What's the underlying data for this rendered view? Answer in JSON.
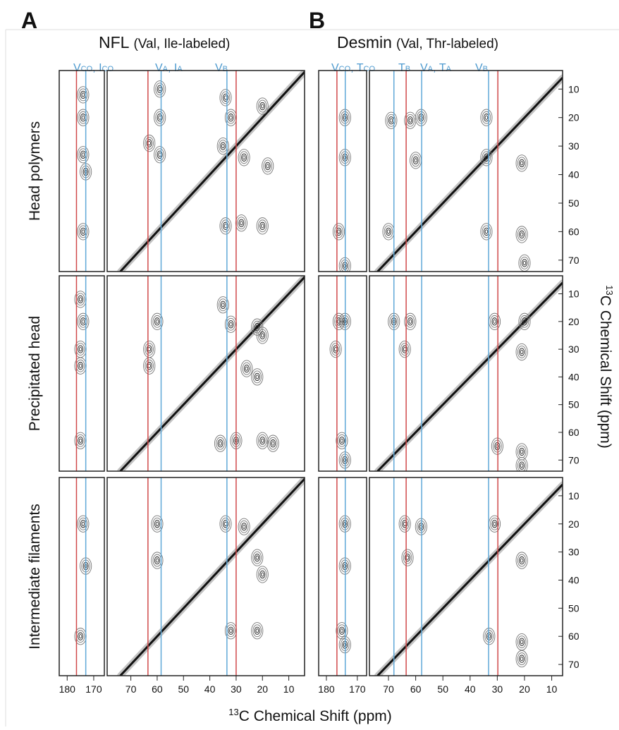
{
  "figure": {
    "type": "contour",
    "columns": [
      {
        "panel_label": "A",
        "title": "NFL",
        "subtitle": "(Val, Ile-labeled)",
        "strip": {
          "xlim": [
            183,
            166
          ],
          "xticks": [
            180,
            170
          ]
        },
        "main": {
          "xlim": [
            79,
            4
          ],
          "xticks": [
            70,
            60,
            50,
            40,
            30,
            20,
            10
          ]
        },
        "lines": [
          {
            "section": "strip",
            "ppm": 176.5,
            "color": "#d0494a"
          },
          {
            "section": "strip",
            "ppm": 173,
            "color": "#5fa8d8"
          },
          {
            "section": "main",
            "ppm": 63.5,
            "color": "#d0494a"
          },
          {
            "section": "main",
            "ppm": 58.5,
            "color": "#5fa8d8"
          },
          {
            "section": "main",
            "ppm": 33.5,
            "color": "#5fa8d8"
          },
          {
            "section": "main",
            "ppm": 30,
            "color": "#d0494a"
          }
        ],
        "line_labels": [
          "Vco, Ico",
          "Vα, Iα",
          "Vβ"
        ],
        "rows": [
          {
            "strip_peaks": [
              [
                174,
                12
              ],
              [
                174,
                20
              ],
              [
                174,
                33
              ],
              [
                173,
                39
              ],
              [
                174,
                60
              ]
            ],
            "main_peaks": [
              [
                59,
                10
              ],
              [
                59,
                20
              ],
              [
                59,
                33
              ],
              [
                63,
                29
              ],
              [
                34,
                13
              ],
              [
                32,
                20
              ],
              [
                35,
                30
              ],
              [
                27,
                34
              ],
              [
                20,
                16
              ],
              [
                18,
                37
              ],
              [
                34,
                58
              ],
              [
                28,
                57
              ],
              [
                20,
                58
              ]
            ]
          },
          {
            "strip_peaks": [
              [
                175,
                12
              ],
              [
                174,
                20
              ],
              [
                175,
                30
              ],
              [
                175,
                36
              ],
              [
                175,
                63
              ]
            ],
            "main_peaks": [
              [
                60,
                20
              ],
              [
                63,
                30
              ],
              [
                63,
                36
              ],
              [
                35,
                14
              ],
              [
                32,
                21
              ],
              [
                22,
                22
              ],
              [
                20,
                25
              ],
              [
                26,
                37
              ],
              [
                22,
                40
              ],
              [
                36,
                64
              ],
              [
                30,
                63
              ],
              [
                20,
                63
              ],
              [
                16,
                64
              ]
            ]
          },
          {
            "strip_peaks": [
              [
                174,
                20
              ],
              [
                173,
                35
              ],
              [
                175,
                60
              ]
            ],
            "main_peaks": [
              [
                60,
                20
              ],
              [
                60,
                33
              ],
              [
                34,
                20
              ],
              [
                27,
                21
              ],
              [
                22,
                32
              ],
              [
                20,
                38
              ],
              [
                32,
                58
              ],
              [
                22,
                58
              ]
            ]
          }
        ]
      },
      {
        "panel_label": "B",
        "title": "Desmin",
        "subtitle": "(Val, Thr-labeled)",
        "strip": {
          "xlim": [
            182.5,
            167
          ],
          "xticks": [
            180,
            170
          ]
        },
        "main": {
          "xlim": [
            77,
            6
          ],
          "xticks": [
            70,
            60,
            50,
            40,
            30,
            20,
            10
          ]
        },
        "lines": [
          {
            "section": "strip",
            "ppm": 176.6,
            "color": "#d0494a"
          },
          {
            "section": "strip",
            "ppm": 173.9,
            "color": "#5fa8d8"
          },
          {
            "section": "main",
            "ppm": 68,
            "color": "#5fa8d8"
          },
          {
            "section": "main",
            "ppm": 63.5,
            "color": "#d0494a"
          },
          {
            "section": "main",
            "ppm": 57.8,
            "color": "#5fa8d8"
          },
          {
            "section": "main",
            "ppm": 33.2,
            "color": "#5fa8d8"
          },
          {
            "section": "main",
            "ppm": 29.8,
            "color": "#d0494a"
          }
        ],
        "line_labels": [
          "Vco, Tco",
          "Tβ",
          "Vα, Tα",
          "Vβ"
        ],
        "rows": [
          {
            "strip_peaks": [
              [
                174,
                20
              ],
              [
                174,
                34
              ],
              [
                176,
                60
              ],
              [
                174,
                72
              ]
            ],
            "main_peaks": [
              [
                69,
                21
              ],
              [
                62,
                21
              ],
              [
                58,
                20
              ],
              [
                34,
                20
              ],
              [
                60,
                35
              ],
              [
                34,
                34
              ],
              [
                70,
                60
              ],
              [
                34,
                60
              ],
              [
                21,
                36
              ],
              [
                21,
                61
              ],
              [
                20,
                71
              ]
            ]
          },
          {
            "strip_peaks": [
              [
                176,
                20
              ],
              [
                177,
                30
              ],
              [
                174,
                20
              ],
              [
                175,
                63
              ],
              [
                174,
                70
              ]
            ],
            "main_peaks": [
              [
                68,
                20
              ],
              [
                62,
                20
              ],
              [
                64,
                30
              ],
              [
                31,
                20
              ],
              [
                20,
                20
              ],
              [
                21,
                31
              ],
              [
                30,
                65
              ],
              [
                21,
                67
              ],
              [
                21,
                72
              ]
            ]
          },
          {
            "strip_peaks": [
              [
                174,
                20
              ],
              [
                174,
                35
              ],
              [
                175,
                58
              ],
              [
                174,
                63
              ]
            ],
            "main_peaks": [
              [
                64,
                20
              ],
              [
                58,
                21
              ],
              [
                63,
                32
              ],
              [
                31,
                20
              ],
              [
                21,
                33
              ],
              [
                33,
                60
              ],
              [
                21,
                62
              ],
              [
                21,
                68
              ]
            ]
          }
        ]
      }
    ],
    "row_labels": [
      "Head polymers",
      "Precipitated head",
      "Intermediate filaments"
    ],
    "ylim": [
      3.5,
      74
    ],
    "yticks": [
      10,
      20,
      30,
      40,
      50,
      60,
      70
    ],
    "diagonal": true,
    "x_label": {
      "sup": "13",
      "text": "C Chemical Shift (ppm)"
    },
    "y_label": {
      "sup": "13",
      "text": "C Chemical Shift (ppm)"
    }
  }
}
